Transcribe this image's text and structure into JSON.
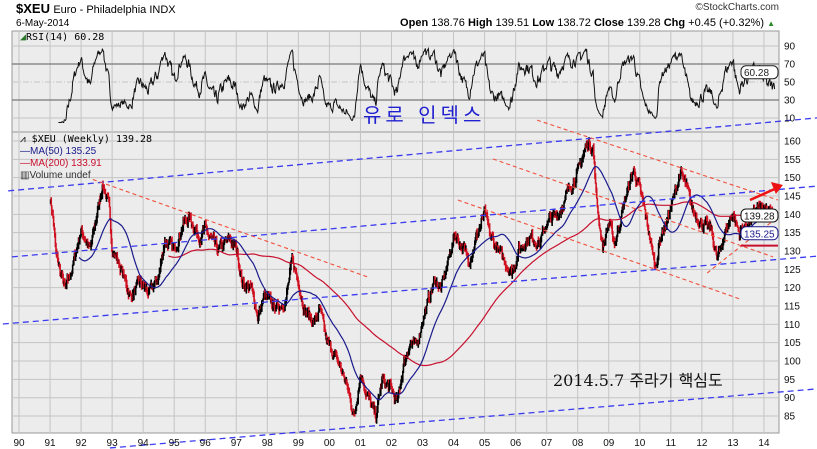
{
  "header": {
    "symbol": "$XEU",
    "name": "Euro - Philadelphia INDX",
    "copyright": "©StockCharts.com",
    "date": "6-May-2014",
    "open_label": "Open",
    "open": "138.76",
    "high_label": "High",
    "high": "139.51",
    "low_label": "Low",
    "low": "138.72",
    "close_label": "Close",
    "close": "139.28",
    "chg_label": "Chg",
    "chg": "+0.45 (+0.32%)",
    "chg_arrow": "▲"
  },
  "rsi_panel": {
    "label": "RSI(14) 60.28",
    "current": "60.28",
    "ticks": [
      "90",
      "70",
      "50",
      "30",
      "10"
    ]
  },
  "price_panel": {
    "legend": {
      "main": "$XEU (Weekly) 139.28",
      "ma50": "MA(50) 135.25",
      "ma200": "MA(200) 133.91",
      "volume": "Volume undef"
    },
    "pills": {
      "close": "139.28",
      "ma50": "135.25"
    },
    "ticks": [
      "160",
      "155",
      "150",
      "145",
      "140",
      "135",
      "130",
      "125",
      "120",
      "115",
      "110",
      "105",
      "100",
      "95",
      "90",
      "85"
    ]
  },
  "annotations": {
    "title_kr": "유로 인덱스",
    "note": "2014.5.7 주라기 핵심도"
  },
  "colors": {
    "ma50": "#1a1a8c",
    "ma200": "#c8102e",
    "trend_blue": "#3b3bf0",
    "trend_red": "#f0503c",
    "up": "#000000",
    "down": "#d01020"
  },
  "chart_data": {
    "type": "line",
    "title": "$XEU Euro - Philadelphia INDX (Weekly)",
    "x_tick_labels": [
      "90",
      "91",
      "92",
      "93",
      "94",
      "95",
      "96",
      "97",
      "98",
      "99",
      "00",
      "01",
      "02",
      "03",
      "04",
      "05",
      "06",
      "07",
      "08",
      "09",
      "10",
      "11",
      "12",
      "13",
      "14"
    ],
    "xlim": [
      1990,
      2014.5
    ],
    "ylim": [
      82,
      162
    ],
    "rsi_ylim": [
      0,
      100
    ],
    "grid": true,
    "price_keypoints": [
      [
        1991.0,
        144.7
      ],
      [
        1991.1,
        139.3
      ],
      [
        1991.2,
        128.4
      ],
      [
        1991.5,
        119.4
      ],
      [
        1991.7,
        124.8
      ],
      [
        1992.0,
        135.7
      ],
      [
        1992.3,
        130.3
      ],
      [
        1992.7,
        148.5
      ],
      [
        1992.9,
        142
      ],
      [
        1993.0,
        131
      ],
      [
        1993.3,
        124.8
      ],
      [
        1993.6,
        117.5
      ],
      [
        1993.9,
        121.3
      ],
      [
        1994.2,
        118.5
      ],
      [
        1994.5,
        122.9
      ],
      [
        1994.7,
        133
      ],
      [
        1995.0,
        130
      ],
      [
        1995.3,
        137.6
      ],
      [
        1995.5,
        139.3
      ],
      [
        1995.8,
        133.8
      ],
      [
        1996.0,
        135.7
      ],
      [
        1996.4,
        130.3
      ],
      [
        1996.8,
        133
      ],
      [
        1997.0,
        131
      ],
      [
        1997.2,
        121.3
      ],
      [
        1997.5,
        119.4
      ],
      [
        1997.7,
        112
      ],
      [
        1997.9,
        117.5
      ],
      [
        1998.3,
        114.7
      ],
      [
        1998.6,
        116.6
      ],
      [
        1998.8,
        127.5
      ],
      [
        1999.0,
        122
      ],
      [
        1999.2,
        113.9
      ],
      [
        1999.5,
        110.4
      ],
      [
        1999.7,
        113.9
      ],
      [
        1999.9,
        105.7
      ],
      [
        2000.2,
        101
      ],
      [
        2000.4,
        97.5
      ],
      [
        2000.6,
        92.1
      ],
      [
        2000.8,
        84.7
      ],
      [
        2001.0,
        96.7
      ],
      [
        2001.2,
        91.3
      ],
      [
        2001.5,
        84.7
      ],
      [
        2001.7,
        94.8
      ],
      [
        2002.0,
        92.1
      ],
      [
        2002.2,
        88.6
      ],
      [
        2002.4,
        99.5
      ],
      [
        2002.6,
        104.9
      ],
      [
        2002.8,
        103.8
      ],
      [
        2003.0,
        111.2
      ],
      [
        2003.4,
        122.1
      ],
      [
        2003.6,
        119.4
      ],
      [
        2004.05,
        134.9
      ],
      [
        2004.5,
        127.5
      ],
      [
        2005.0,
        140.4
      ],
      [
        2005.2,
        133.8
      ],
      [
        2005.88,
        124
      ],
      [
        2006.1,
        130.3
      ],
      [
        2006.46,
        133.8
      ],
      [
        2006.78,
        132.2
      ],
      [
        2007.0,
        137.6
      ],
      [
        2007.4,
        140.4
      ],
      [
        2007.75,
        147.5
      ],
      [
        2008.0,
        151.3
      ],
      [
        2008.3,
        159.4
      ],
      [
        2008.5,
        158.4
      ],
      [
        2008.6,
        144.7
      ],
      [
        2008.8,
        131
      ],
      [
        2009.0,
        137.6
      ],
      [
        2009.2,
        132.2
      ],
      [
        2009.5,
        143.1
      ],
      [
        2009.8,
        152.1
      ],
      [
        2010.0,
        146.6
      ],
      [
        2010.2,
        139.3
      ],
      [
        2010.5,
        125.6
      ],
      [
        2010.7,
        134.9
      ],
      [
        2010.9,
        138.5
      ],
      [
        2011.1,
        144.7
      ],
      [
        2011.3,
        151.5
      ],
      [
        2011.5,
        147.5
      ],
      [
        2011.7,
        141.2
      ],
      [
        2012.0,
        137.6
      ],
      [
        2012.3,
        135.7
      ],
      [
        2012.5,
        127.5
      ],
      [
        2012.7,
        133.8
      ],
      [
        2013.0,
        140.4
      ],
      [
        2013.2,
        134.9
      ],
      [
        2013.5,
        137.6
      ],
      [
        2013.8,
        142
      ],
      [
        2014.1,
        140.5
      ],
      [
        2014.35,
        139.28
      ]
    ],
    "series": [
      {
        "name": "$XEU (Weekly)",
        "last": 139.28
      },
      {
        "name": "MA(50)",
        "last": 135.25
      },
      {
        "name": "MA(200)",
        "last": 133.91
      },
      {
        "name": "RSI(14)",
        "last": 60.28
      }
    ],
    "rsi_levels": [
      70,
      50,
      30
    ],
    "trend_lines_blue": [
      [
        [
          1989.65,
          146.4
        ],
        [
          2015.71,
          166.3
        ]
      ],
      [
        [
          1989.77,
          128.4
        ],
        [
          2015.71,
          147.7
        ]
      ],
      [
        [
          1989.48,
          110.1
        ],
        [
          2015.71,
          128.6
        ]
      ],
      [
        [
          1992.93,
          76.3
        ],
        [
          2015.71,
          92.4
        ]
      ]
    ],
    "trend_lines_red": [
      [
        [
          1992.38,
          149.5
        ],
        [
          2001.24,
          122.9
        ]
      ],
      [
        [
          2006.69,
          165.7
        ],
        [
          2014.45,
          143.9
        ]
      ],
      [
        [
          2005.27,
          155.1
        ],
        [
          2014.29,
          128.4
        ]
      ],
      [
        [
          2004.14,
          143.9
        ],
        [
          2013.23,
          116.9
        ]
      ],
      [
        [
          2012.17,
          124.0
        ],
        [
          2014.45,
          139.3
        ]
      ]
    ],
    "arrow": [
      [
        2013.55,
        143.9
      ],
      [
        2014.61,
        148.0
      ]
    ]
  }
}
